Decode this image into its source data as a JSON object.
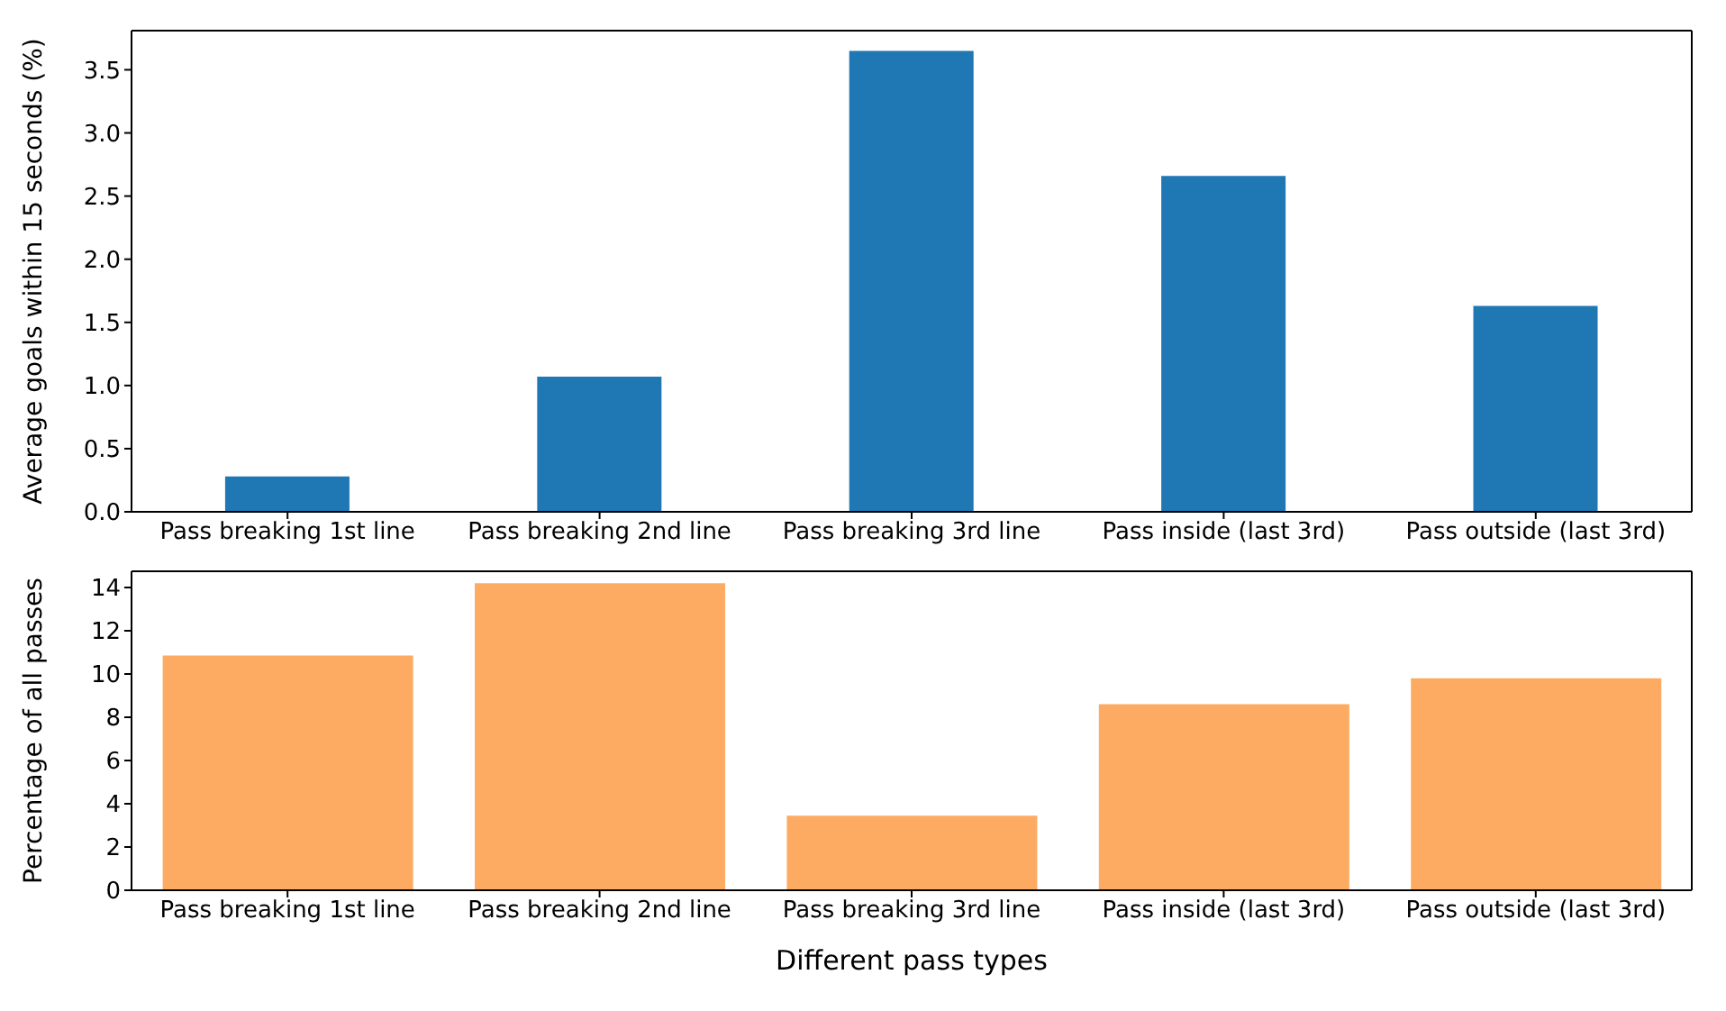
{
  "chart_data": [
    {
      "type": "bar",
      "categories": [
        "Pass breaking 1st line",
        "Pass breaking 2nd line",
        "Pass breaking 3rd line",
        "Pass inside (last 3rd)",
        "Pass outside (last 3rd)"
      ],
      "values": [
        0.28,
        1.07,
        3.65,
        2.66,
        1.63
      ],
      "color": "#1f77b4",
      "ylabel": "Average goals within 15 seconds (%)",
      "ylim": [
        0,
        3.81
      ],
      "yticks": [
        {
          "value": 0,
          "label": "0.0"
        },
        {
          "value": 0.5,
          "label": "0.5"
        },
        {
          "value": 1,
          "label": "1.0"
        },
        {
          "value": 1.5,
          "label": "1.5"
        },
        {
          "value": 2,
          "label": "2.0"
        },
        {
          "value": 2.5,
          "label": "2.5"
        },
        {
          "value": 3,
          "label": "3.0"
        },
        {
          "value": 3.5,
          "label": "3.5"
        }
      ],
      "grid": false,
      "legend": false
    },
    {
      "type": "bar",
      "categories": [
        "Pass breaking 1st line",
        "Pass breaking 2nd line",
        "Pass breaking 3rd line",
        "Pass inside (last 3rd)",
        "Pass outside (last 3rd)"
      ],
      "values": [
        10.85,
        14.2,
        3.45,
        8.6,
        9.8
      ],
      "color": "#fdab62",
      "xlabel": "Different pass types",
      "ylabel": "Percentage of all passes",
      "ylim": [
        0,
        14.75
      ],
      "yticks": [
        0,
        2,
        4,
        6,
        8,
        10,
        12,
        14
      ],
      "grid": false,
      "legend": false
    }
  ]
}
